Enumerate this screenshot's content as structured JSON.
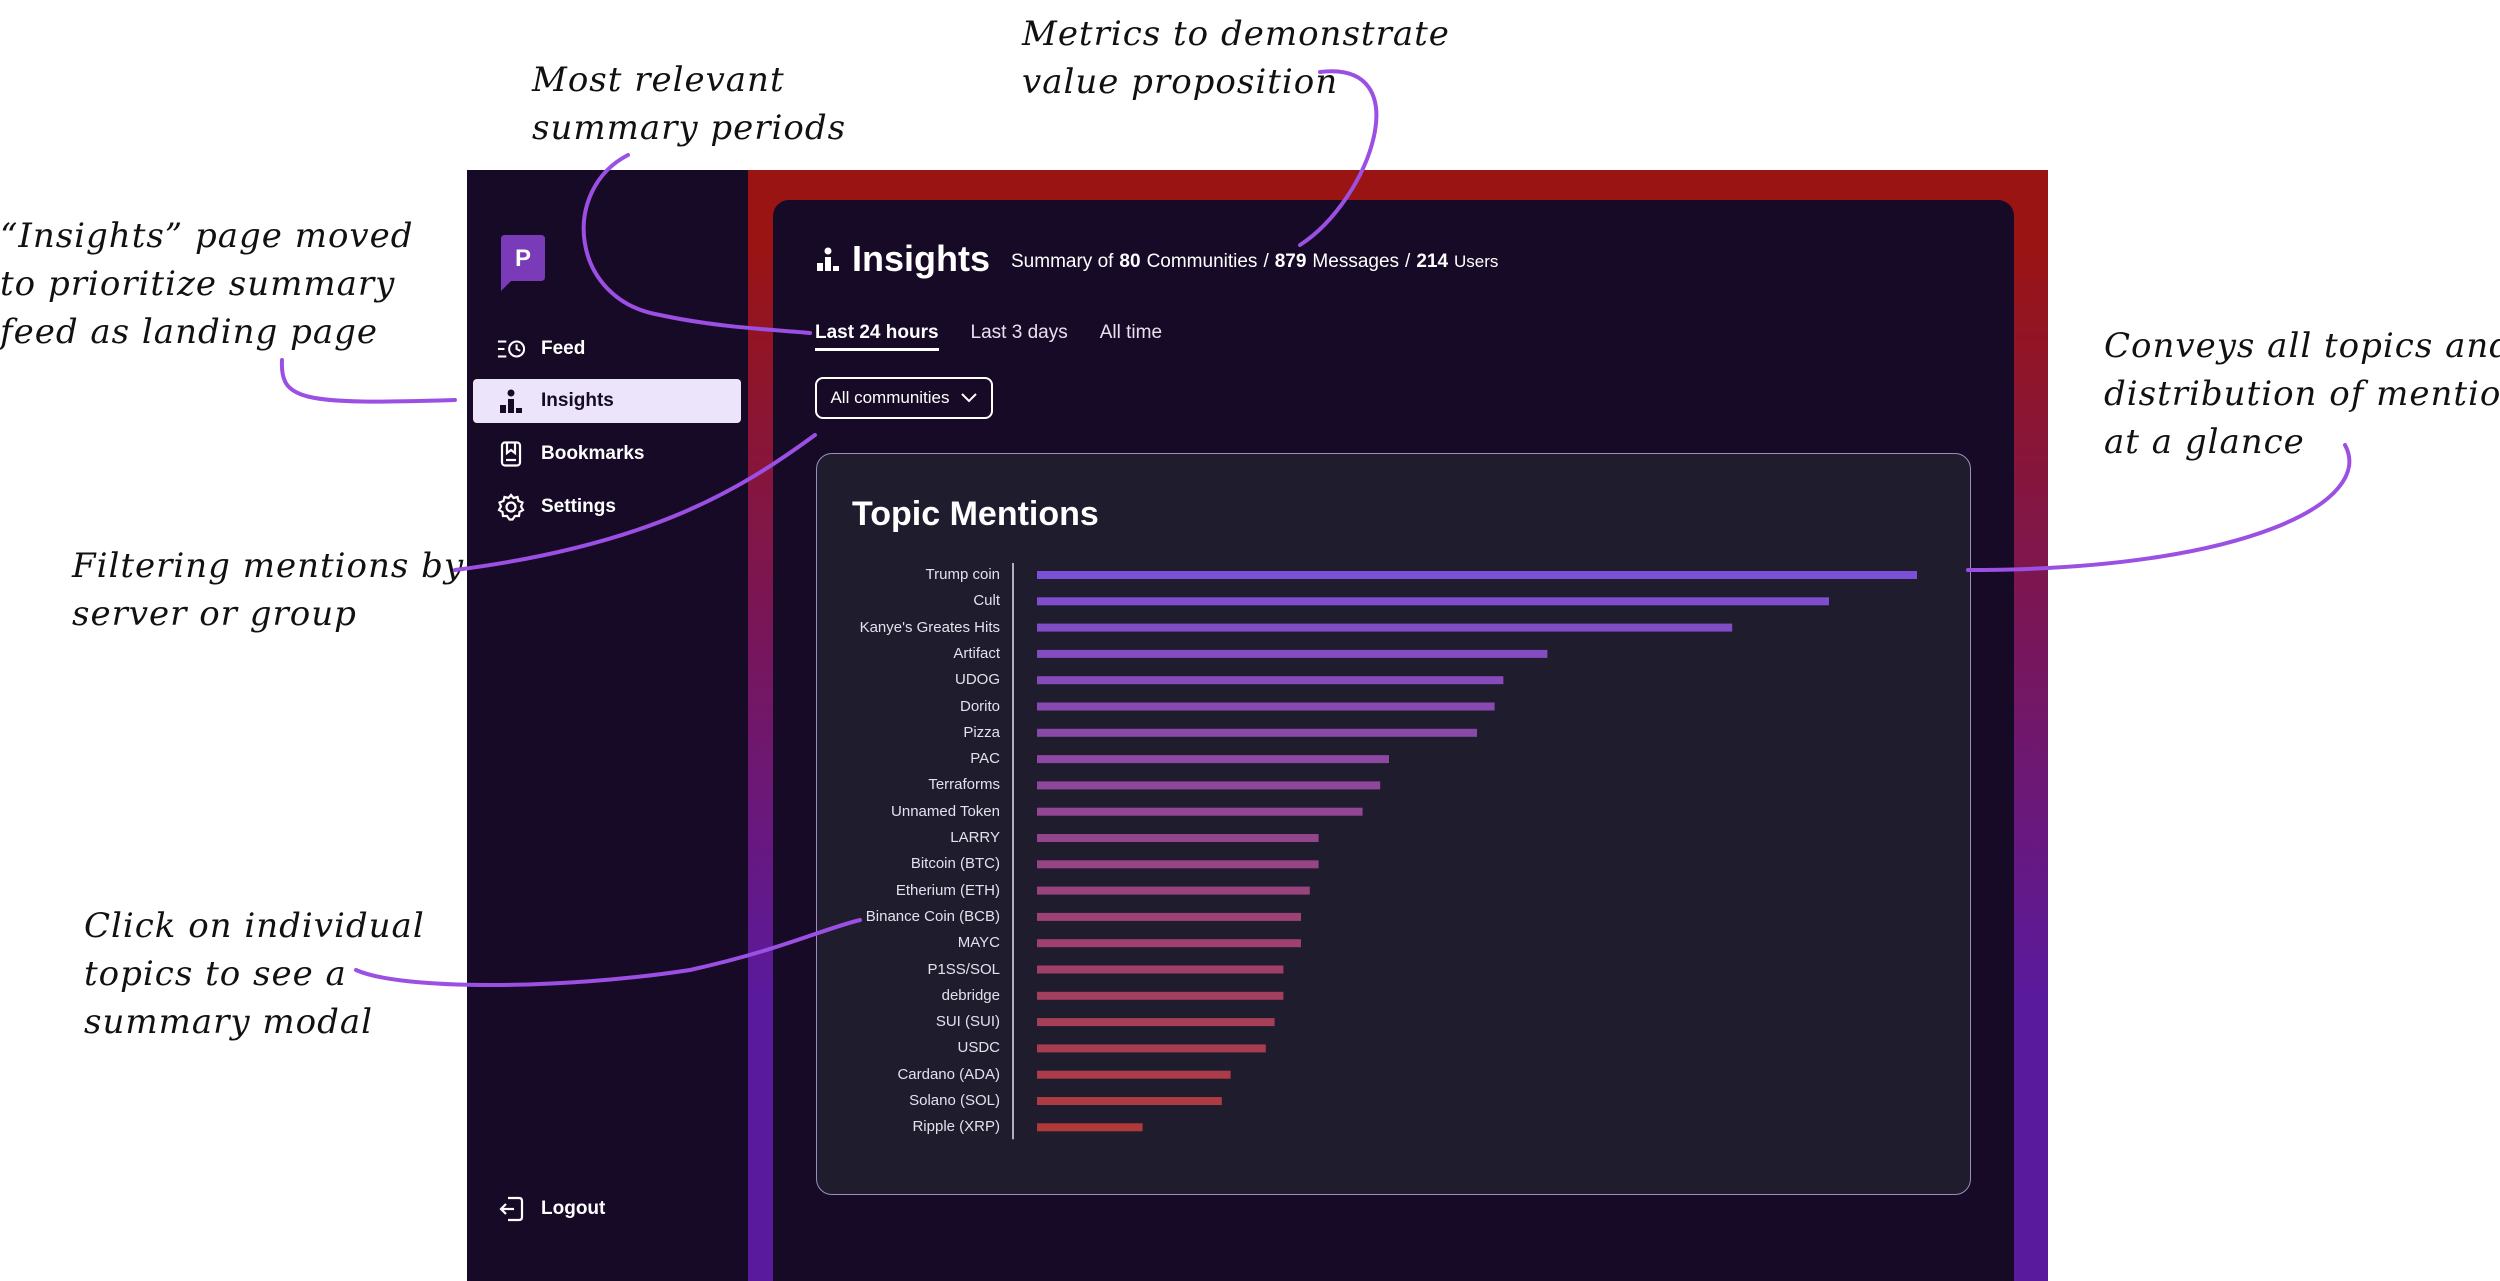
{
  "sidebar": {
    "logo_letter": "P",
    "items": [
      {
        "label": "Feed",
        "icon": "feed-icon"
      },
      {
        "label": "Insights",
        "icon": "insights-icon"
      },
      {
        "label": "Bookmarks",
        "icon": "bookmark-icon"
      },
      {
        "label": "Settings",
        "icon": "gear-icon"
      }
    ],
    "logout_label": "Logout"
  },
  "header": {
    "title": "Insights",
    "summary_prefix": "Summary of",
    "communities_count": "80",
    "communities_label": "Communities",
    "messages_count": "879",
    "messages_label": "Messages",
    "users_count": "214",
    "users_label": "Users",
    "separator": "/"
  },
  "tabs": [
    "Last 24 hours",
    "Last 3 days",
    "All time"
  ],
  "filter": {
    "selected": "All communities"
  },
  "colors": {
    "accent": "#7b4fd6",
    "sidebar_bg": "#170a26",
    "bar_top": "#7b4fd6",
    "bar_bottom": "#b03a3a"
  },
  "chart_data": {
    "type": "bar",
    "orientation": "horizontal",
    "title": "Topic Mentions",
    "categories": [
      "Trump coin",
      "Cult",
      "Kanye's Greates Hits",
      "Artifact",
      "UDOG",
      "Dorito",
      "Pizza",
      "PAC",
      "Terraforms",
      "Unnamed Token",
      "LARRY",
      "Bitcoin (BTC)",
      "Etherium (ETH)",
      "Binance Coin (BCB)",
      "MAYC",
      "P1SS/SOL",
      "debridge",
      "SUI (SUI)",
      "USDC",
      "Cardano (ADA)",
      "Solano (SOL)",
      "Ripple (XRP)"
    ],
    "values": [
      100,
      90,
      79,
      58,
      53,
      52,
      50,
      40,
      39,
      37,
      32,
      32,
      31,
      30,
      30,
      28,
      28,
      27,
      26,
      22,
      21,
      12
    ],
    "grid": false,
    "legend": "none"
  },
  "annotations": [
    {
      "id": "metrics",
      "text": "Metrics to demonstrate\nvalue proposition"
    },
    {
      "id": "periods",
      "text": "Most relevant\nsummary periods"
    },
    {
      "id": "insights",
      "text": "“Insights” page moved\nto prioritize summary\nfeed as landing page"
    },
    {
      "id": "topics",
      "text": "Conveys all topics and\ndistribution of mentions\nat a glance"
    },
    {
      "id": "filter",
      "text": "Filtering mentions by\nserver or group"
    },
    {
      "id": "click",
      "text": "Click on individual\ntopics to see a\nsummary modal"
    }
  ]
}
